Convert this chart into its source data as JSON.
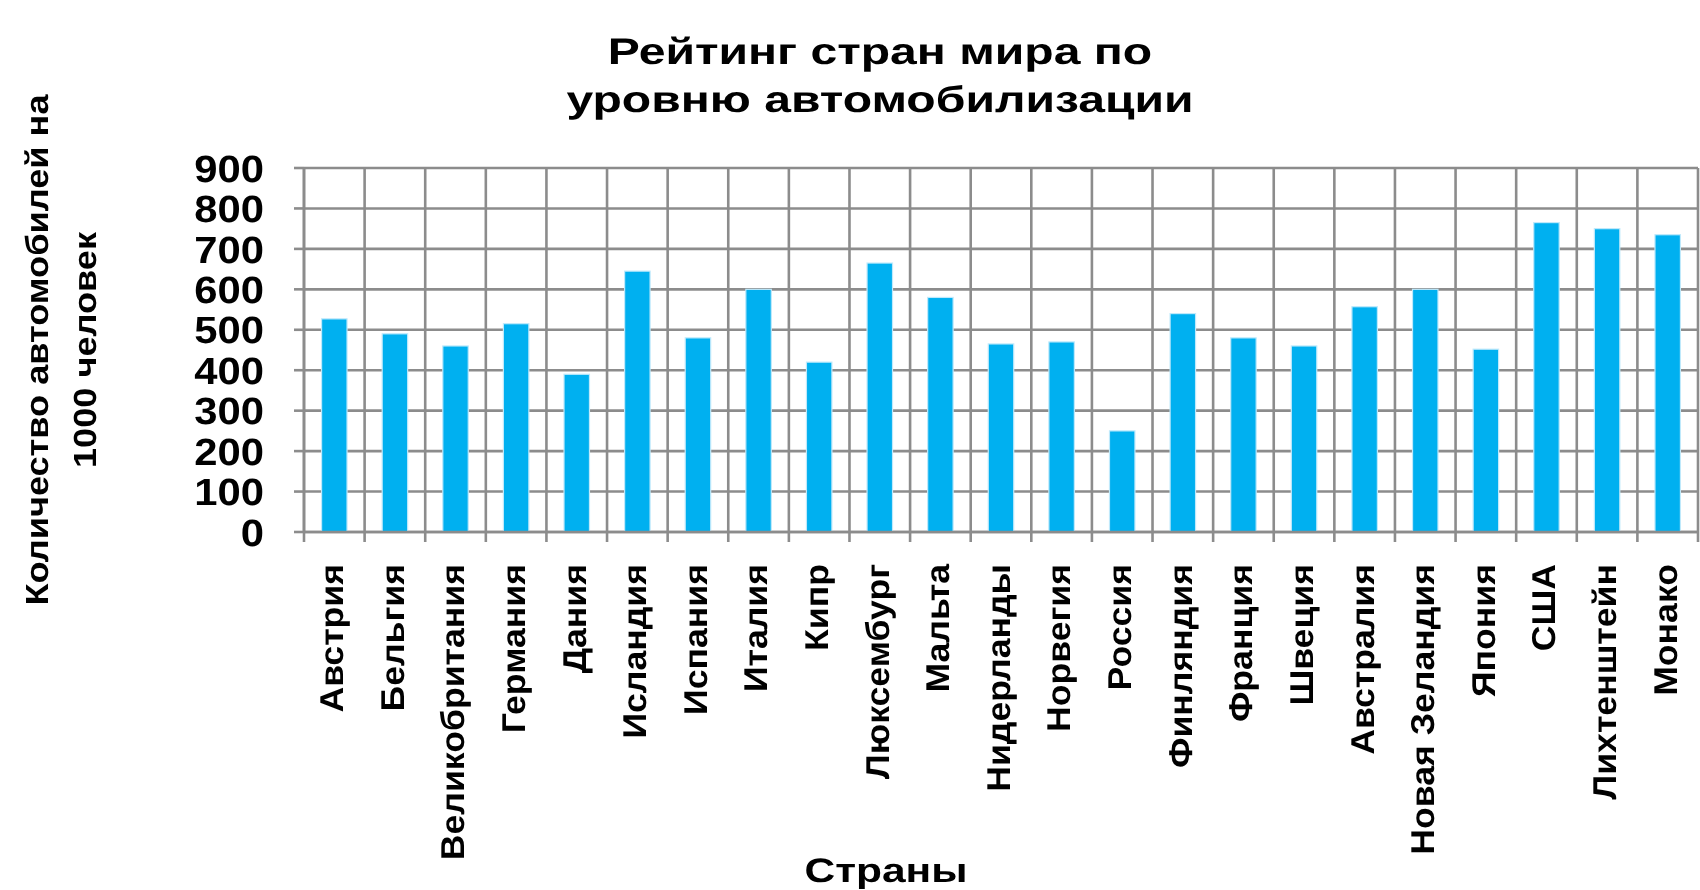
{
  "chart_data": {
    "type": "bar",
    "title": "Рейтинг стран мира по\nуровню автомобилизации",
    "xlabel": "Страны",
    "ylabel": "Количество автомобилей на\n1000 человек",
    "categories": [
      "Австрия",
      "Бельгия",
      "Великобритания",
      "Германия",
      "Дания",
      "Исландия",
      "Испания",
      "Италия",
      "Кипр",
      "Люксембург",
      "Мальта",
      "Нидерланды",
      "Норвегия",
      "Россия",
      "Финляндия",
      "Франция",
      "Швеция",
      "Австралия",
      "Новая Зеландия",
      "Япония",
      "США",
      "Лихтенштейн",
      "Монако"
    ],
    "values": [
      527,
      490,
      460,
      515,
      390,
      645,
      480,
      600,
      420,
      665,
      580,
      465,
      470,
      250,
      540,
      480,
      460,
      557,
      600,
      452,
      765,
      750,
      735
    ],
    "color": "#00b0f0",
    "ylim": [
      0,
      900
    ],
    "yticks": [
      0,
      100,
      200,
      300,
      400,
      500,
      600,
      700,
      800,
      900
    ],
    "grid": true
  }
}
